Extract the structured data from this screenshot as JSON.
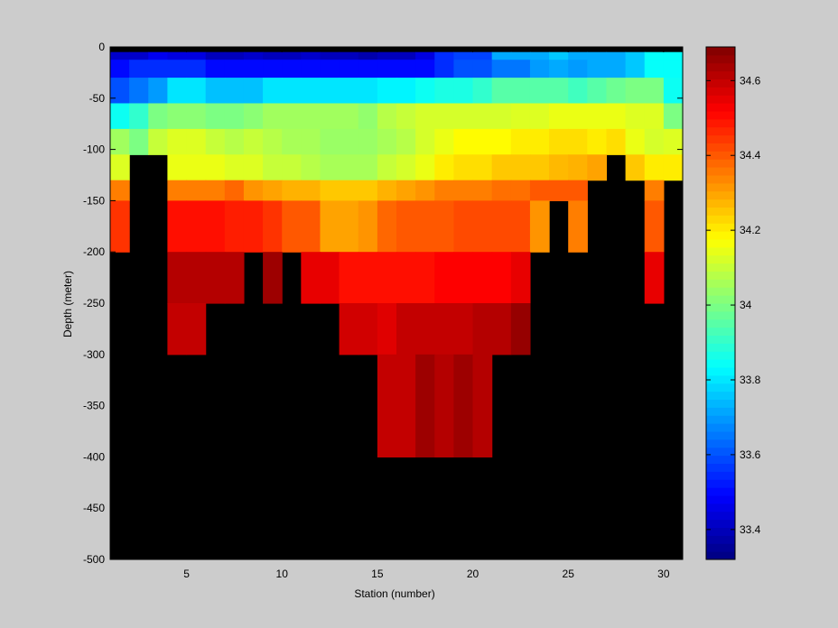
{
  "chart_data": {
    "type": "heatmap",
    "xlabel": "Station (number)",
    "ylabel": "Depth (meter)",
    "xlim": [
      1,
      31
    ],
    "ylim": [
      -500,
      0
    ],
    "x_ticks": [
      5,
      10,
      15,
      20,
      25,
      30
    ],
    "y_ticks": [
      0,
      -50,
      -100,
      -150,
      -200,
      -250,
      -300,
      -350,
      -400,
      -450,
      -500
    ],
    "colorbar": {
      "range": [
        33.32,
        34.69
      ],
      "ticks": [
        33.4,
        33.6,
        33.8,
        34,
        34.2,
        34.4,
        34.6
      ],
      "colormap": "jet"
    },
    "missing_color": "#000000",
    "depth_levels": [
      [
        -5,
        -12.5
      ],
      [
        -12.5,
        -30
      ],
      [
        -30,
        -55
      ],
      [
        -55,
        -80
      ],
      [
        -80,
        -105
      ],
      [
        -105,
        -130
      ],
      [
        -130,
        -150
      ],
      [
        -150,
        -200
      ],
      [
        -200,
        -250
      ],
      [
        -250,
        -300
      ],
      [
        -300,
        -400
      ],
      [
        -400,
        -500
      ]
    ],
    "stations": [
      1,
      2,
      3,
      4,
      5,
      6,
      7,
      8,
      9,
      10,
      11,
      12,
      13,
      14,
      15,
      16,
      17,
      18,
      19,
      20,
      21,
      22,
      23,
      24,
      25,
      26,
      27,
      28,
      29,
      30
    ],
    "values": [
      [
        33.42,
        33.42,
        33.47,
        33.45,
        33.45,
        33.4,
        33.4,
        33.42,
        33.4,
        33.4,
        33.42,
        33.4,
        33.4,
        33.38,
        33.4,
        33.4,
        33.45,
        33.55,
        33.58,
        33.58,
        33.72,
        33.72,
        33.72,
        33.76,
        33.72,
        33.72,
        33.72,
        33.76,
        33.84,
        33.84
      ],
      [
        33.5,
        33.55,
        33.55,
        33.55,
        33.55,
        33.5,
        33.5,
        33.5,
        33.5,
        33.5,
        33.5,
        33.5,
        33.5,
        33.5,
        33.5,
        33.5,
        33.5,
        33.55,
        33.6,
        33.6,
        33.65,
        33.65,
        33.7,
        33.72,
        33.7,
        33.72,
        33.72,
        33.76,
        33.84,
        33.84
      ],
      [
        33.6,
        33.65,
        33.7,
        33.8,
        33.8,
        33.75,
        33.75,
        33.75,
        33.8,
        33.8,
        33.8,
        33.8,
        33.8,
        33.8,
        33.82,
        33.82,
        33.85,
        33.87,
        33.87,
        33.9,
        33.95,
        33.95,
        33.95,
        33.95,
        33.92,
        33.95,
        33.98,
        34.0,
        34.0,
        33.85
      ],
      [
        33.85,
        33.9,
        34.0,
        34.02,
        34.02,
        34.0,
        34.0,
        34.02,
        34.05,
        34.05,
        34.05,
        34.05,
        34.05,
        34.03,
        34.08,
        34.1,
        34.12,
        34.12,
        34.12,
        34.12,
        34.12,
        34.13,
        34.13,
        34.15,
        34.15,
        34.15,
        34.15,
        34.13,
        34.13,
        34.0
      ],
      [
        34.05,
        34.0,
        34.1,
        34.13,
        34.13,
        34.1,
        34.08,
        34.1,
        34.08,
        34.06,
        34.06,
        34.04,
        34.04,
        34.04,
        34.06,
        34.08,
        34.12,
        34.15,
        34.18,
        34.18,
        34.18,
        34.2,
        34.2,
        34.22,
        34.22,
        34.2,
        34.22,
        34.15,
        34.12,
        34.13
      ],
      [
        34.13,
        null,
        null,
        34.15,
        34.15,
        34.15,
        34.13,
        34.13,
        34.1,
        34.1,
        34.08,
        34.06,
        34.06,
        34.06,
        34.1,
        34.12,
        34.15,
        34.2,
        34.22,
        34.22,
        34.25,
        34.25,
        34.25,
        34.27,
        34.28,
        34.3,
        null,
        34.25,
        34.2,
        34.2
      ],
      [
        34.35,
        null,
        null,
        34.35,
        34.35,
        34.35,
        34.38,
        34.32,
        34.3,
        34.28,
        34.28,
        34.25,
        34.25,
        34.25,
        34.28,
        34.3,
        34.32,
        34.35,
        34.35,
        34.35,
        34.37,
        34.37,
        34.4,
        34.4,
        34.4,
        null,
        null,
        null,
        34.35,
        null
      ],
      [
        34.45,
        null,
        null,
        34.5,
        34.5,
        34.5,
        34.48,
        34.48,
        34.45,
        34.4,
        34.4,
        34.3,
        34.3,
        34.32,
        34.38,
        34.4,
        34.4,
        34.4,
        34.42,
        34.42,
        34.42,
        34.42,
        34.32,
        null,
        34.35,
        null,
        null,
        null,
        34.4,
        null
      ],
      [
        null,
        null,
        null,
        34.62,
        34.62,
        34.62,
        34.62,
        null,
        34.65,
        null,
        34.55,
        34.55,
        34.5,
        34.5,
        34.5,
        34.5,
        34.5,
        34.52,
        34.52,
        34.52,
        34.52,
        34.55,
        null,
        null,
        null,
        null,
        null,
        null,
        34.55,
        null
      ],
      [
        null,
        null,
        null,
        34.6,
        34.6,
        null,
        null,
        null,
        null,
        null,
        null,
        null,
        34.58,
        34.58,
        34.56,
        34.6,
        34.6,
        34.6,
        34.6,
        34.62,
        34.62,
        34.66,
        null,
        null,
        null,
        null,
        null,
        null,
        null,
        null
      ],
      [
        null,
        null,
        null,
        null,
        null,
        null,
        null,
        null,
        null,
        null,
        null,
        null,
        null,
        null,
        34.6,
        34.6,
        34.65,
        34.62,
        34.65,
        34.62,
        null,
        null,
        null,
        null,
        null,
        null,
        null,
        null,
        null,
        null
      ],
      [
        null,
        null,
        null,
        null,
        null,
        null,
        null,
        null,
        null,
        null,
        null,
        null,
        null,
        null,
        null,
        null,
        null,
        null,
        null,
        null,
        null,
        null,
        null,
        null,
        null,
        null,
        null,
        null,
        null,
        null
      ]
    ]
  }
}
